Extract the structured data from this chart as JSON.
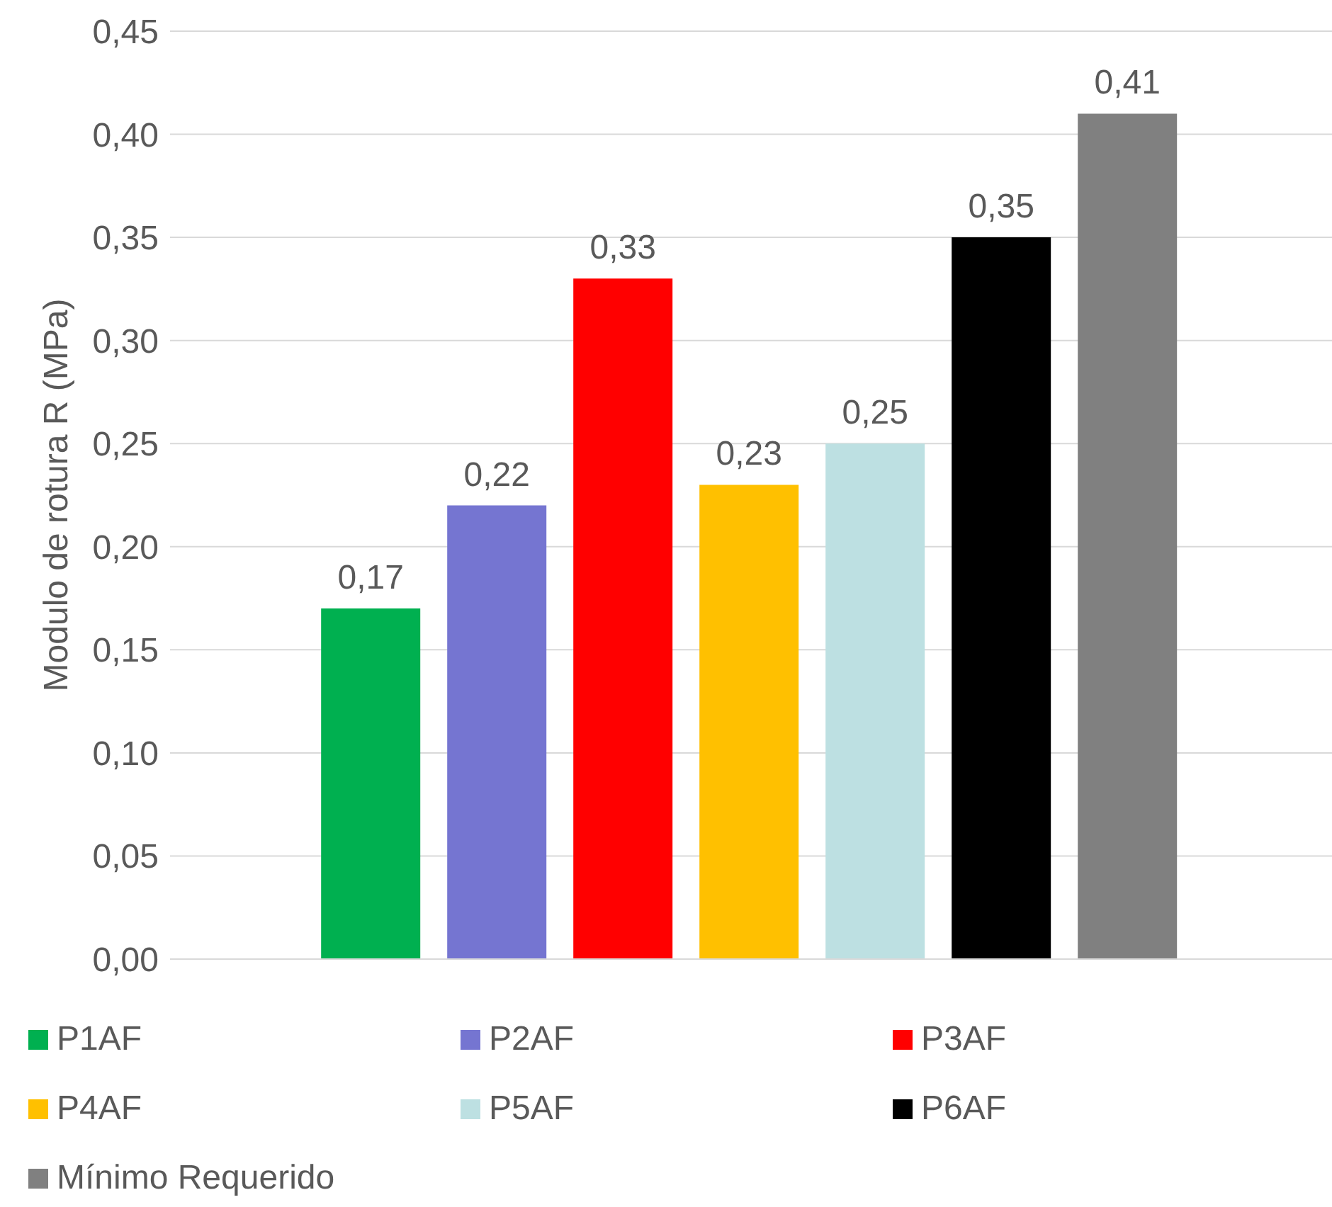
{
  "chart_data": {
    "type": "bar",
    "ylabel": "Modulo de rotura R (MPa)",
    "categories": [
      null
    ],
    "series": [
      {
        "name": "P1AF",
        "color": "#00b050",
        "values": [
          0.17
        ],
        "value_labels": [
          "0,17"
        ]
      },
      {
        "name": "P2AF",
        "color": "#7575d1",
        "values": [
          0.22
        ],
        "value_labels": [
          "0,22"
        ]
      },
      {
        "name": "P3AF",
        "color": "#ff0000",
        "values": [
          0.33
        ],
        "value_labels": [
          "0,33"
        ]
      },
      {
        "name": "P4AF",
        "color": "#ffc000",
        "values": [
          0.23
        ],
        "value_labels": [
          "0,23"
        ]
      },
      {
        "name": "P5AF",
        "color": "#bde0e2",
        "values": [
          0.25
        ],
        "value_labels": [
          "0,25"
        ]
      },
      {
        "name": "P6AF",
        "color": "#000000",
        "values": [
          0.35
        ],
        "value_labels": [
          "0,35"
        ]
      },
      {
        "name": "Mínimo Requerido",
        "color": "#808080",
        "values": [
          0.41
        ],
        "value_labels": [
          "0,41"
        ]
      }
    ],
    "ylim": [
      0,
      0.45
    ],
    "yticks": [
      {
        "value": 0,
        "label": "0,00"
      },
      {
        "value": 0.05,
        "label": "0,05"
      },
      {
        "value": 0.1,
        "label": "0,10"
      },
      {
        "value": 0.15,
        "label": "0,15"
      },
      {
        "value": 0.2,
        "label": "0,20"
      },
      {
        "value": 0.25,
        "label": "0,25"
      },
      {
        "value": 0.3,
        "label": "0,30"
      },
      {
        "value": 0.35,
        "label": "0,35"
      },
      {
        "value": 0.4,
        "label": "0,40"
      },
      {
        "value": 0.45,
        "label": "0,45"
      }
    ],
    "grid": "y",
    "legend": "bottom"
  }
}
